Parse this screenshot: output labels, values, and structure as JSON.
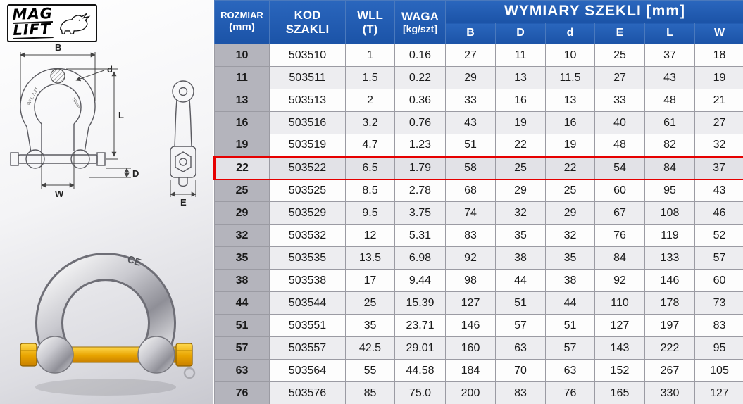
{
  "brand": {
    "name_line1": "MAG",
    "name_line2": "LIFT"
  },
  "table": {
    "header": {
      "col_size_line1": "ROZMIAR",
      "col_size_line2": "(mm)",
      "col_code_line1": "KOD",
      "col_code_line2": "SZAKLI",
      "col_wll_line1": "WLL",
      "col_wll_line2": "(T)",
      "col_waga_line1": "WAGA",
      "col_waga_line2": "[kg/szt]",
      "col_dims_title": "WYMIARY SZEKLI [mm]",
      "dims": [
        "B",
        "D",
        "d",
        "E",
        "L",
        "W"
      ]
    },
    "highlighted_size": "22",
    "rows": [
      {
        "size": "10",
        "code": "503510",
        "wll": "1",
        "waga": "0.16",
        "B": "27",
        "D": "11",
        "d": "10",
        "E": "25",
        "L": "37",
        "W": "18"
      },
      {
        "size": "11",
        "code": "503511",
        "wll": "1.5",
        "waga": "0.22",
        "B": "29",
        "D": "13",
        "d": "11.5",
        "E": "27",
        "L": "43",
        "W": "19"
      },
      {
        "size": "13",
        "code": "503513",
        "wll": "2",
        "waga": "0.36",
        "B": "33",
        "D": "16",
        "d": "13",
        "E": "33",
        "L": "48",
        "W": "21"
      },
      {
        "size": "16",
        "code": "503516",
        "wll": "3.2",
        "waga": "0.76",
        "B": "43",
        "D": "19",
        "d": "16",
        "E": "40",
        "L": "61",
        "W": "27"
      },
      {
        "size": "19",
        "code": "503519",
        "wll": "4.7",
        "waga": "1.23",
        "B": "51",
        "D": "22",
        "d": "19",
        "E": "48",
        "L": "82",
        "W": "32"
      },
      {
        "size": "22",
        "code": "503522",
        "wll": "6.5",
        "waga": "1.79",
        "B": "58",
        "D": "25",
        "d": "22",
        "E": "54",
        "L": "84",
        "W": "37"
      },
      {
        "size": "25",
        "code": "503525",
        "wll": "8.5",
        "waga": "2.78",
        "B": "68",
        "D": "29",
        "d": "25",
        "E": "60",
        "L": "95",
        "W": "43"
      },
      {
        "size": "29",
        "code": "503529",
        "wll": "9.5",
        "waga": "3.75",
        "B": "74",
        "D": "32",
        "d": "29",
        "E": "67",
        "L": "108",
        "W": "46"
      },
      {
        "size": "32",
        "code": "503532",
        "wll": "12",
        "waga": "5.31",
        "B": "83",
        "D": "35",
        "d": "32",
        "E": "76",
        "L": "119",
        "W": "52"
      },
      {
        "size": "35",
        "code": "503535",
        "wll": "13.5",
        "waga": "6.98",
        "B": "92",
        "D": "38",
        "d": "35",
        "E": "84",
        "L": "133",
        "W": "57"
      },
      {
        "size": "38",
        "code": "503538",
        "wll": "17",
        "waga": "9.44",
        "B": "98",
        "D": "44",
        "d": "38",
        "E": "92",
        "L": "146",
        "W": "60"
      },
      {
        "size": "44",
        "code": "503544",
        "wll": "25",
        "waga": "15.39",
        "B": "127",
        "D": "51",
        "d": "44",
        "E": "110",
        "L": "178",
        "W": "73"
      },
      {
        "size": "51",
        "code": "503551",
        "wll": "35",
        "waga": "23.71",
        "B": "146",
        "D": "57",
        "d": "51",
        "E": "127",
        "L": "197",
        "W": "83"
      },
      {
        "size": "57",
        "code": "503557",
        "wll": "42.5",
        "waga": "29.01",
        "B": "160",
        "D": "63",
        "d": "57",
        "E": "143",
        "L": "222",
        "W": "95"
      },
      {
        "size": "63",
        "code": "503564",
        "wll": "55",
        "waga": "44.58",
        "B": "184",
        "D": "70",
        "d": "63",
        "E": "152",
        "L": "267",
        "W": "105"
      },
      {
        "size": "76",
        "code": "503576",
        "wll": "85",
        "waga": "75.0",
        "B": "200",
        "D": "83",
        "d": "76",
        "E": "165",
        "L": "330",
        "W": "127"
      }
    ]
  },
  "diagram": {
    "dims": {
      "B": "B",
      "d": "d",
      "L": "L",
      "D": "D",
      "W": "W",
      "E": "E"
    },
    "note_wll": "WLL 3.2T",
    "note_size": "16mm"
  },
  "photo": {
    "marking": "CE"
  },
  "colors": {
    "header_blue": "#1b53a7",
    "size_col_gray": "#b4b4bc",
    "highlight_red": "#e60000"
  }
}
